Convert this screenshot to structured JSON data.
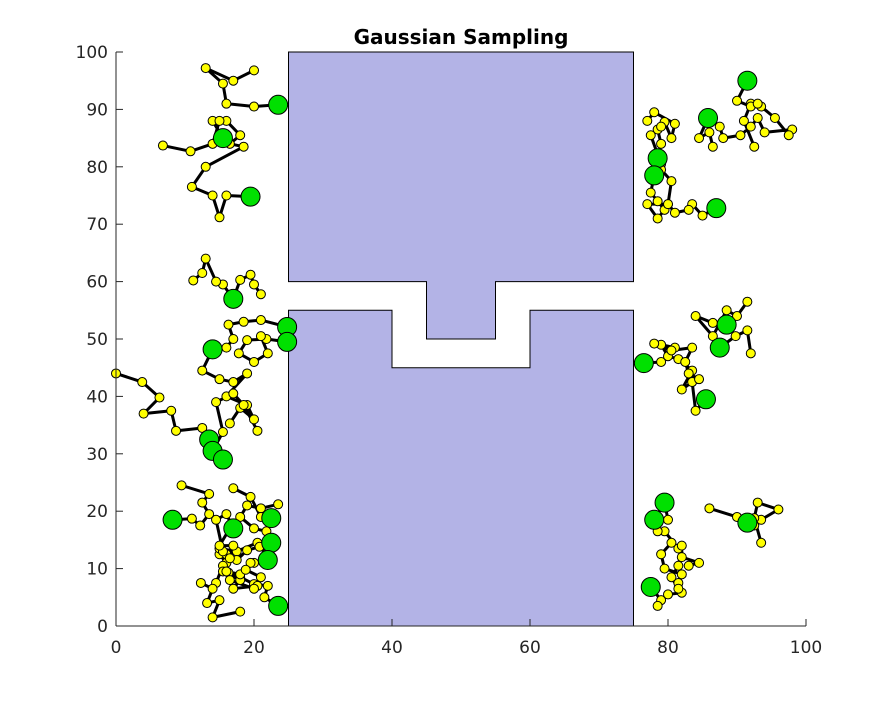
{
  "chart_data": {
    "type": "scatter",
    "title": "Gaussian Sampling",
    "xlabel": "",
    "ylabel": "",
    "xlim": [
      0,
      100
    ],
    "ylim": [
      0,
      100
    ],
    "xticks": [
      "0",
      "20",
      "40",
      "60",
      "80",
      "100"
    ],
    "yticks": [
      "0",
      "10",
      "20",
      "30",
      "40",
      "50",
      "60",
      "70",
      "80",
      "90",
      "100"
    ],
    "grid": false,
    "colors": {
      "obstacle_fill": "#b3b3e6",
      "sample_fill": "#ffff00",
      "start_fill": "#00e000",
      "edge": "#000000"
    },
    "obstacles": [
      {
        "name": "upper-block",
        "points": [
          [
            25,
            100
          ],
          [
            75,
            100
          ],
          [
            75,
            60
          ],
          [
            55,
            60
          ],
          [
            55,
            50
          ],
          [
            45,
            50
          ],
          [
            45,
            60
          ],
          [
            25,
            60
          ]
        ]
      },
      {
        "name": "lower-block",
        "points": [
          [
            25,
            0
          ],
          [
            75,
            0
          ],
          [
            75,
            55
          ],
          [
            60,
            55
          ],
          [
            60,
            45
          ],
          [
            40,
            45
          ],
          [
            40,
            55
          ],
          [
            25,
            55
          ]
        ]
      }
    ],
    "chains": [
      [
        [
          23.5,
          90.8
        ],
        [
          20,
          90.5
        ],
        [
          16,
          91
        ],
        [
          15.5,
          94.5
        ],
        [
          13,
          97.2
        ],
        [
          17,
          95
        ],
        [
          20,
          96.8
        ]
      ],
      [
        [
          15.5,
          85
        ],
        [
          14,
          88
        ],
        [
          16,
          88
        ],
        [
          18,
          85.5
        ],
        [
          16.5,
          84
        ],
        [
          18.5,
          83.5
        ],
        [
          13,
          80
        ],
        [
          11,
          76.5
        ],
        [
          14,
          75
        ],
        [
          15,
          71.2
        ],
        [
          16,
          75
        ],
        [
          19.5,
          74.8
        ]
      ],
      [
        [
          6.8,
          83.7
        ],
        [
          10.8,
          82.7
        ],
        [
          14,
          84
        ],
        [
          15,
          88
        ]
      ],
      [
        [
          17,
          57
        ],
        [
          18,
          60.3
        ],
        [
          19.5,
          61.2
        ],
        [
          20,
          59.5
        ],
        [
          21,
          57.8
        ]
      ],
      [
        [
          17,
          57
        ],
        [
          15.5,
          59.5
        ],
        [
          14.5,
          60
        ],
        [
          13,
          64
        ],
        [
          12.5,
          61.5
        ],
        [
          11.2,
          60.2
        ]
      ],
      [
        [
          24.8,
          52.1
        ],
        [
          21,
          53.3
        ],
        [
          18.5,
          53
        ],
        [
          16.3,
          52.5
        ],
        [
          17,
          50
        ],
        [
          16,
          48.5
        ],
        [
          14,
          48.2
        ]
      ],
      [
        [
          24.8,
          49.5
        ],
        [
          21.8,
          50
        ],
        [
          19,
          49.8
        ],
        [
          17.8,
          47.5
        ],
        [
          20,
          46
        ],
        [
          22,
          47.5
        ],
        [
          21,
          50.5
        ]
      ],
      [
        [
          14,
          48.2
        ],
        [
          12.5,
          44.5
        ],
        [
          15,
          43
        ],
        [
          17,
          42.5
        ],
        [
          19,
          44
        ],
        [
          16,
          40
        ],
        [
          19,
          38.5
        ],
        [
          20,
          36
        ],
        [
          18,
          38
        ],
        [
          16.5,
          35.3
        ]
      ],
      [
        [
          0,
          44
        ],
        [
          3.8,
          42.5
        ],
        [
          6.3,
          39.8
        ],
        [
          4,
          37
        ],
        [
          8,
          37.5
        ],
        [
          8.7,
          34
        ],
        [
          12.5,
          34.5
        ],
        [
          13.5,
          32.5
        ]
      ],
      [
        [
          14,
          30.5
        ],
        [
          15.5,
          33.8
        ],
        [
          14.5,
          39
        ],
        [
          17,
          40.5
        ],
        [
          18.5,
          38.5
        ],
        [
          20.5,
          34
        ]
      ],
      [
        [
          15.5,
          29
        ],
        [
          13.5,
          32.5
        ]
      ],
      [
        [
          8.2,
          18.5
        ],
        [
          11,
          18.7
        ],
        [
          12.2,
          17.5
        ],
        [
          13.5,
          19.5
        ],
        [
          12.5,
          21.5
        ],
        [
          13.5,
          23
        ],
        [
          9.5,
          24.5
        ]
      ],
      [
        [
          23.5,
          3.5
        ],
        [
          21.5,
          5
        ],
        [
          22,
          7
        ],
        [
          20,
          7.3
        ],
        [
          18,
          8.5
        ],
        [
          16.3,
          9.3
        ],
        [
          16,
          11
        ],
        [
          15,
          12.5
        ],
        [
          15,
          13.5
        ],
        [
          17.5,
          13
        ],
        [
          20.5,
          14.5
        ],
        [
          22,
          12
        ],
        [
          20,
          11
        ]
      ],
      [
        [
          22.5,
          18.8
        ],
        [
          21.8,
          16.5
        ],
        [
          20,
          17
        ],
        [
          18,
          19
        ],
        [
          19,
          21
        ],
        [
          21,
          20.5
        ],
        [
          23.5,
          21.2
        ]
      ],
      [
        [
          22.5,
          14.5
        ],
        [
          20.8,
          13.8
        ],
        [
          19,
          13.2
        ],
        [
          17.5,
          11.5
        ],
        [
          16,
          12.5
        ],
        [
          15.5,
          10.5
        ],
        [
          14.5,
          7.5
        ]
      ],
      [
        [
          17,
          17
        ],
        [
          16,
          19.5
        ],
        [
          14.5,
          18.5
        ],
        [
          15.5,
          13
        ],
        [
          16.5,
          11.8
        ],
        [
          15.5,
          9.5
        ],
        [
          18,
          8
        ],
        [
          17,
          6.5
        ],
        [
          20.5,
          7
        ]
      ],
      [
        [
          16.5,
          17
        ],
        [
          15,
          14
        ],
        [
          17,
          14
        ],
        [
          16,
          9.5
        ],
        [
          18,
          9
        ]
      ],
      [
        [
          12.3,
          7.5
        ],
        [
          14,
          6.5
        ],
        [
          13.2,
          4
        ],
        [
          15,
          4.5
        ],
        [
          14,
          1.5
        ],
        [
          18,
          2.5
        ]
      ],
      [
        [
          22,
          11.5
        ],
        [
          19.5,
          11
        ],
        [
          18.8,
          9.8
        ],
        [
          21,
          8.5
        ],
        [
          20,
          6.5
        ],
        [
          16.5,
          8
        ]
      ],
      [
        [
          17,
          24
        ],
        [
          19.5,
          22.5
        ],
        [
          21,
          19
        ]
      ],
      [
        [
          78,
          18.5
        ],
        [
          79.5,
          21.5
        ],
        [
          80,
          18.5
        ]
      ],
      [
        [
          77.5,
          6.8
        ],
        [
          79,
          4.5
        ],
        [
          78.5,
          3.5
        ],
        [
          80,
          5.5
        ],
        [
          82,
          5.8
        ],
        [
          81.5,
          7.5
        ],
        [
          82,
          9
        ],
        [
          79.5,
          10
        ],
        [
          79,
          12.5
        ],
        [
          80.5,
          14.5
        ],
        [
          81.5,
          13.5
        ],
        [
          79.5,
          16.5
        ],
        [
          78.5,
          16.5
        ]
      ],
      [
        [
          83,
          10.5
        ],
        [
          84.5,
          11
        ],
        [
          82,
          12
        ],
        [
          82,
          14
        ],
        [
          81.5,
          10.5
        ],
        [
          80.5,
          8.5
        ],
        [
          81.5,
          6.5
        ]
      ],
      [
        [
          91,
          18.5
        ],
        [
          92.5,
          17.5
        ],
        [
          93.5,
          18.5
        ],
        [
          96,
          20.3
        ],
        [
          93,
          21.5
        ],
        [
          92.5,
          18.8
        ],
        [
          93.5,
          14.5
        ]
      ],
      [
        [
          86,
          20.5
        ],
        [
          90,
          19
        ],
        [
          91.5,
          18
        ]
      ],
      [
        [
          76.5,
          45.8
        ],
        [
          79,
          46
        ],
        [
          81,
          48.5
        ],
        [
          79,
          49
        ],
        [
          80,
          47
        ],
        [
          81.5,
          46.5
        ],
        [
          83.5,
          44.5
        ],
        [
          82,
          41.2
        ],
        [
          83.5,
          42.5
        ],
        [
          84,
          37.5
        ],
        [
          85.5,
          39.5
        ]
      ],
      [
        [
          87.5,
          48.5
        ],
        [
          89.8,
          50.5
        ],
        [
          91.5,
          51.5
        ],
        [
          92,
          47.5
        ]
      ],
      [
        [
          88.5,
          52.5
        ],
        [
          86.5,
          52.8
        ],
        [
          84,
          54
        ],
        [
          86.5,
          50.5
        ],
        [
          88.5,
          55
        ],
        [
          90,
          54
        ],
        [
          91.5,
          56.5
        ]
      ],
      [
        [
          78,
          49.2
        ],
        [
          80.5,
          48
        ],
        [
          83.5,
          48.5
        ],
        [
          82.5,
          46
        ],
        [
          83,
          44
        ],
        [
          84.5,
          43
        ]
      ],
      [
        [
          78.5,
          81.5
        ],
        [
          79,
          84
        ],
        [
          78.5,
          86.5
        ],
        [
          79.5,
          87.8
        ],
        [
          80.5,
          85
        ],
        [
          81,
          87.5
        ],
        [
          78,
          89.5
        ],
        [
          77,
          88
        ]
      ],
      [
        [
          78,
          78.5
        ],
        [
          79,
          80.5
        ],
        [
          77.5,
          85.5
        ],
        [
          79,
          87
        ]
      ],
      [
        [
          78,
          78.5
        ],
        [
          77.5,
          75.5
        ],
        [
          78.5,
          74
        ],
        [
          79.5,
          72.5
        ],
        [
          78.5,
          71
        ],
        [
          77,
          73.5
        ],
        [
          80,
          73.5
        ],
        [
          80.5,
          77.5
        ],
        [
          79,
          79.5
        ]
      ],
      [
        [
          87,
          72.8
        ],
        [
          85,
          71.5
        ],
        [
          83.5,
          73.5
        ],
        [
          83,
          72.5
        ],
        [
          81,
          72
        ],
        [
          80,
          73.5
        ]
      ],
      [
        [
          85.8,
          88.5
        ],
        [
          87.5,
          87
        ],
        [
          88,
          85
        ],
        [
          90.5,
          85.5
        ],
        [
          92,
          87
        ],
        [
          93,
          88.5
        ],
        [
          94,
          86
        ],
        [
          98,
          86.5
        ],
        [
          97.5,
          85.5
        ],
        [
          95.5,
          88.5
        ],
        [
          93.5,
          90.5
        ],
        [
          92,
          91
        ],
        [
          91,
          88
        ],
        [
          92.5,
          83.5
        ]
      ],
      [
        [
          91.5,
          95
        ],
        [
          90,
          91.5
        ],
        [
          92,
          90.5
        ],
        [
          93,
          91
        ]
      ],
      [
        [
          85.8,
          88.5
        ],
        [
          84.5,
          85
        ],
        [
          86,
          86
        ],
        [
          86.5,
          83.5
        ]
      ]
    ],
    "start_points": [
      [
        23.5,
        90.8
      ],
      [
        15.5,
        85
      ],
      [
        19.5,
        74.8
      ],
      [
        17,
        57
      ],
      [
        24.8,
        52.1
      ],
      [
        24.8,
        49.5
      ],
      [
        14,
        48.2
      ],
      [
        13.5,
        32.5
      ],
      [
        14,
        30.5
      ],
      [
        15.5,
        29
      ],
      [
        8.2,
        18.5
      ],
      [
        23.5,
        3.5
      ],
      [
        22.5,
        18.8
      ],
      [
        22.5,
        14.5
      ],
      [
        17,
        17
      ],
      [
        22,
        11.5
      ],
      [
        78,
        18.5
      ],
      [
        79.5,
        21.5
      ],
      [
        77.5,
        6.8
      ],
      [
        91.5,
        18
      ],
      [
        76.5,
        45.8
      ],
      [
        87.5,
        48.5
      ],
      [
        88.5,
        52.5
      ],
      [
        85.5,
        39.5
      ],
      [
        78.5,
        81.5
      ],
      [
        78,
        78.5
      ],
      [
        87,
        72.8
      ],
      [
        85.8,
        88.5
      ],
      [
        91.5,
        95
      ]
    ]
  }
}
